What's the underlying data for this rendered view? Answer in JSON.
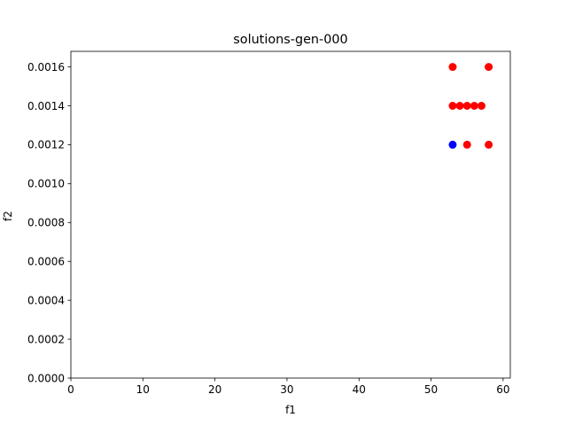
{
  "chart_data": {
    "type": "scatter",
    "title": "solutions-gen-000",
    "xlabel": "f1",
    "ylabel": "f2",
    "xlim": [
      0,
      61
    ],
    "ylim": [
      0,
      0.00168
    ],
    "xticks": [
      0,
      10,
      20,
      30,
      40,
      50,
      60
    ],
    "xtick_labels": [
      "0",
      "10",
      "20",
      "30",
      "40",
      "50",
      "60"
    ],
    "yticks": [
      0,
      0.0002,
      0.0004,
      0.0006,
      0.0008,
      0.001,
      0.0012,
      0.0014,
      0.0016
    ],
    "ytick_labels": [
      "0.0000",
      "0.0002",
      "0.0004",
      "0.0006",
      "0.0008",
      "0.0010",
      "0.0012",
      "0.0014",
      "0.0016"
    ],
    "grid": false,
    "series": [
      {
        "color": "#ff0000",
        "points": [
          {
            "x": 53,
            "y": 0.0016
          },
          {
            "x": 58,
            "y": 0.0016
          },
          {
            "x": 53,
            "y": 0.0014
          },
          {
            "x": 54,
            "y": 0.0014
          },
          {
            "x": 55,
            "y": 0.0014
          },
          {
            "x": 56,
            "y": 0.0014
          },
          {
            "x": 57,
            "y": 0.0014
          },
          {
            "x": 55,
            "y": 0.0012
          },
          {
            "x": 58,
            "y": 0.0012
          }
        ]
      },
      {
        "color": "#0000ff",
        "points": [
          {
            "x": 53,
            "y": 0.0012
          }
        ]
      }
    ]
  }
}
